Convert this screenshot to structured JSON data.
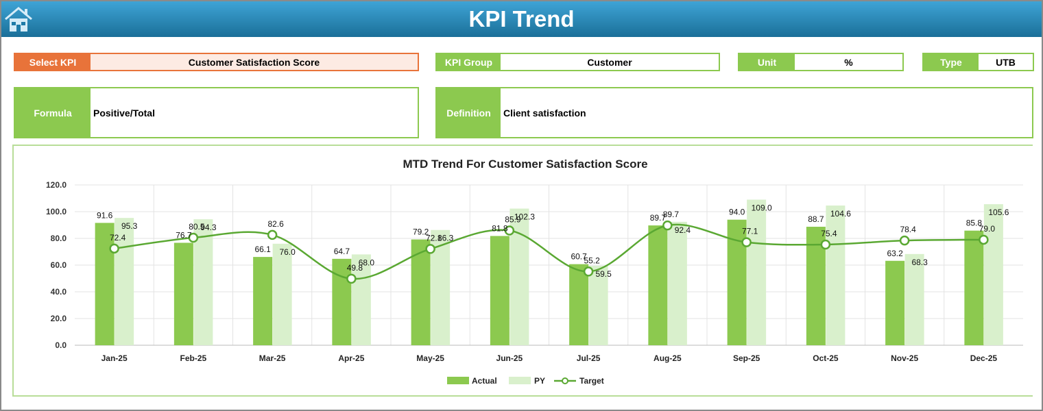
{
  "header": {
    "title": "KPI Trend",
    "home_icon": "home-icon"
  },
  "select_kpi": {
    "label": "Select KPI",
    "value": "Customer Satisfaction Score"
  },
  "kpi_group": {
    "label": "KPI Group",
    "value": "Customer"
  },
  "unit": {
    "label": "Unit",
    "value": "%"
  },
  "type": {
    "label": "Type",
    "value": "UTB"
  },
  "formula": {
    "label": "Formula",
    "value": "Positive/Total"
  },
  "definition": {
    "label": "Definition",
    "value": "Client satisfaction"
  },
  "colors": {
    "actual": "#8cc94f",
    "py": "#d9f0cc",
    "target": "#5aa832",
    "accent_orange": "#e8733a",
    "header_blue": "#1f7ba8"
  },
  "chart_data": {
    "type": "bar+line",
    "title": "MTD Trend For Customer Satisfaction Score",
    "categories": [
      "Jan-25",
      "Feb-25",
      "Mar-25",
      "Apr-25",
      "May-25",
      "Jun-25",
      "Jul-25",
      "Aug-25",
      "Sep-25",
      "Oct-25",
      "Nov-25",
      "Dec-25"
    ],
    "series": [
      {
        "name": "Actual",
        "type": "bar",
        "values": [
          91.6,
          76.7,
          66.1,
          64.7,
          79.2,
          81.8,
          60.7,
          89.7,
          94.0,
          88.7,
          63.2,
          85.8
        ]
      },
      {
        "name": "PY",
        "type": "bar",
        "values": [
          95.3,
          94.3,
          76.0,
          68.0,
          86.3,
          102.3,
          59.5,
          92.4,
          109.0,
          104.6,
          68.3,
          105.6
        ]
      },
      {
        "name": "Target",
        "type": "line",
        "values": [
          72.4,
          80.5,
          82.6,
          49.8,
          72.1,
          85.9,
          55.2,
          89.7,
          77.1,
          75.4,
          78.4,
          79.0
        ]
      }
    ],
    "ylim": [
      0,
      120
    ],
    "yticks": [
      "0.0",
      "20.0",
      "40.0",
      "60.0",
      "80.0",
      "100.0",
      "120.0"
    ],
    "grid": true,
    "legend": "bottom"
  }
}
